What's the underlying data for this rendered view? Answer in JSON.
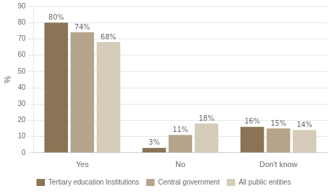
{
  "chart_data": {
    "type": "bar",
    "categories": [
      "Yes",
      "No",
      "Don't know"
    ],
    "series": [
      {
        "name": "Tertiary education Institutions",
        "color": "#8B7355",
        "values": [
          80,
          3,
          16
        ],
        "value_labels": [
          "80%",
          "3%",
          "16%"
        ]
      },
      {
        "name": "Central government",
        "color": "#B5A48A",
        "values": [
          74,
          11,
          15
        ],
        "value_labels": [
          "74%",
          "11%",
          "15%"
        ]
      },
      {
        "name": "All public entities",
        "color": "#D4CCB8",
        "values": [
          68,
          18,
          14
        ],
        "value_labels": [
          "68%",
          "18%",
          "14%"
        ]
      }
    ],
    "ylabel": "%",
    "ylim": [
      0,
      90
    ],
    "yticks": [
      0,
      10,
      20,
      30,
      40,
      50,
      60,
      70,
      80,
      90
    ],
    "grid": true,
    "legend": "bottom",
    "data_labels": true
  }
}
